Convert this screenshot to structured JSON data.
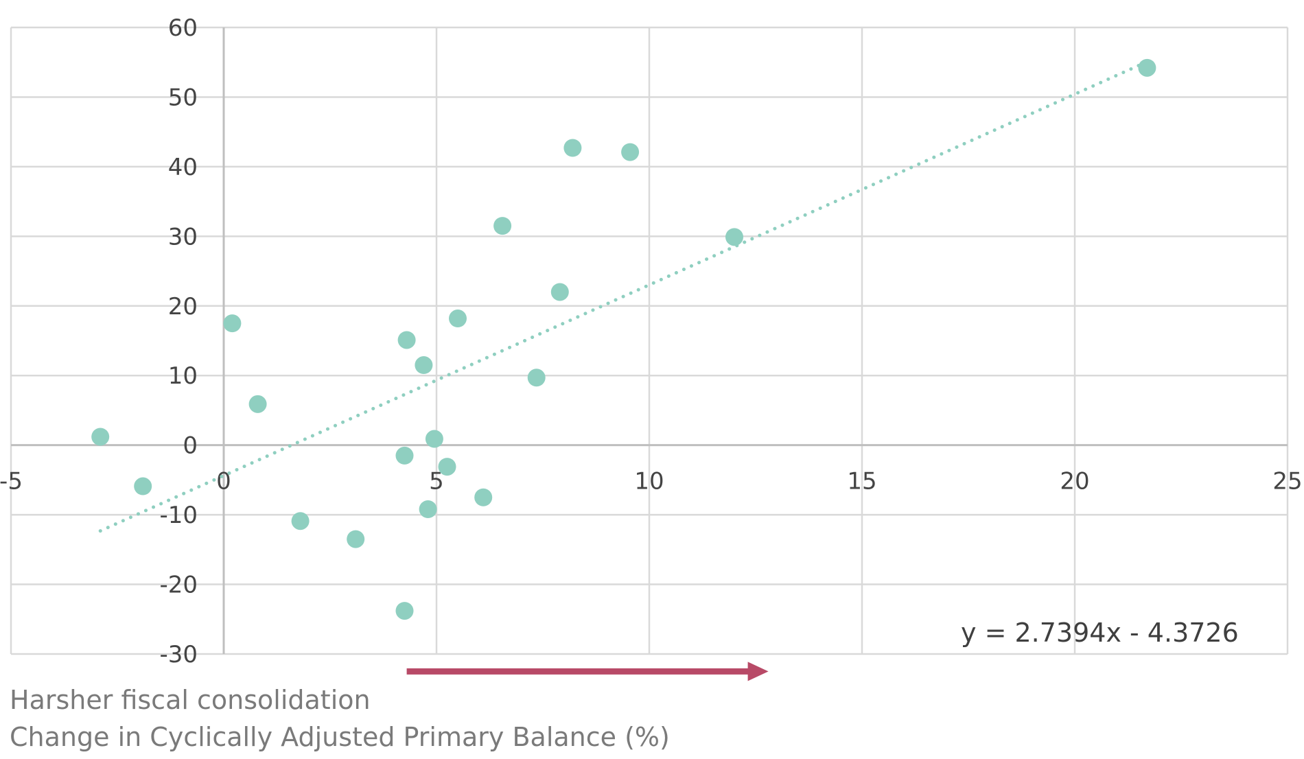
{
  "chart_data": {
    "type": "scatter",
    "xlim": [
      -5,
      25
    ],
    "ylim": [
      -30,
      60
    ],
    "xticks": [
      -5,
      0,
      5,
      10,
      15,
      20,
      25
    ],
    "yticks": [
      -30,
      -20,
      -10,
      0,
      10,
      20,
      30,
      40,
      50,
      60
    ],
    "x_tick_labels": [
      "-5",
      "0",
      "5",
      "10",
      "15",
      "20",
      "25"
    ],
    "y_tick_labels": [
      "-30",
      "-20",
      "-10",
      "0",
      "10",
      "20",
      "30",
      "40",
      "50",
      "60"
    ],
    "grid": true,
    "points": [
      {
        "x": -2.9,
        "y": 1.2
      },
      {
        "x": -1.9,
        "y": -5.9
      },
      {
        "x": 0.2,
        "y": 17.5
      },
      {
        "x": 0.8,
        "y": 5.9
      },
      {
        "x": 1.8,
        "y": -10.9
      },
      {
        "x": 3.1,
        "y": -13.5
      },
      {
        "x": 4.25,
        "y": -1.5
      },
      {
        "x": 4.3,
        "y": 15.1
      },
      {
        "x": 4.25,
        "y": -23.8
      },
      {
        "x": 4.7,
        "y": 11.5
      },
      {
        "x": 4.8,
        "y": -9.2
      },
      {
        "x": 4.95,
        "y": 0.9
      },
      {
        "x": 5.25,
        "y": -3.1
      },
      {
        "x": 5.5,
        "y": 18.2
      },
      {
        "x": 6.1,
        "y": -7.5
      },
      {
        "x": 6.55,
        "y": 31.5
      },
      {
        "x": 7.35,
        "y": 9.7
      },
      {
        "x": 7.9,
        "y": 22.0
      },
      {
        "x": 8.2,
        "y": 42.7
      },
      {
        "x": 9.55,
        "y": 42.1
      },
      {
        "x": 12.0,
        "y": 29.9
      },
      {
        "x": 21.7,
        "y": 54.2
      }
    ],
    "trendline": {
      "slope": 2.7394,
      "intercept": -4.3726,
      "x_range": [
        -2.9,
        21.7
      ]
    },
    "equation_label": "y = 2.7394x - 4.3726",
    "arrow": {
      "x_start": 4.3,
      "x_end": 12.8,
      "y": -32.5
    },
    "annotation": "Harsher fiscal consolidation",
    "xlabel": "Change in Cyclically Adjusted Primary Balance (%)",
    "colors": {
      "point": "#8fcfc0",
      "trendline": "#8fcfc0",
      "grid": "#d9d9d9",
      "zero_axis": "#bfbfbf",
      "arrow": "#b84a67"
    }
  }
}
